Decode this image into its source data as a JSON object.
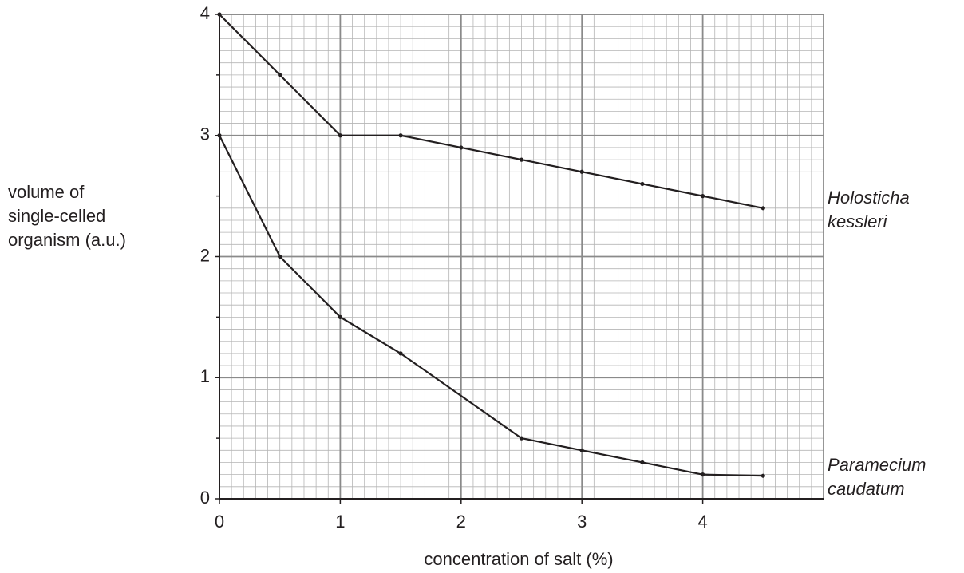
{
  "chart_data": {
    "type": "line",
    "ylabel": [
      "volume of",
      "single-celled",
      "organism (a.u.)"
    ],
    "xlabel": "concentration of salt (%)",
    "xlim": [
      0,
      5
    ],
    "xticks": [
      0,
      1,
      2,
      3,
      4
    ],
    "ylim": [
      0,
      4
    ],
    "yticks": [
      0,
      1,
      2,
      3,
      4
    ],
    "grid": true,
    "series": [
      {
        "name": "Holosticha kessleri",
        "color": "#231f20",
        "x": [
          0,
          0.5,
          1,
          1.5,
          2,
          2.5,
          3,
          3.5,
          4,
          4.5
        ],
        "values": [
          4,
          3.5,
          3.0,
          3.0,
          2.9,
          2.8,
          2.7,
          2.6,
          2.5,
          2.4
        ]
      },
      {
        "name": "Paramecium caudatum",
        "color": "#231f20",
        "x": [
          0,
          0.5,
          1,
          1.5,
          2.5,
          3,
          3.5,
          4,
          4.5
        ],
        "values": [
          3,
          2.0,
          1.5,
          1.2,
          0.5,
          0.4,
          0.3,
          0.2,
          0.19
        ]
      }
    ]
  }
}
